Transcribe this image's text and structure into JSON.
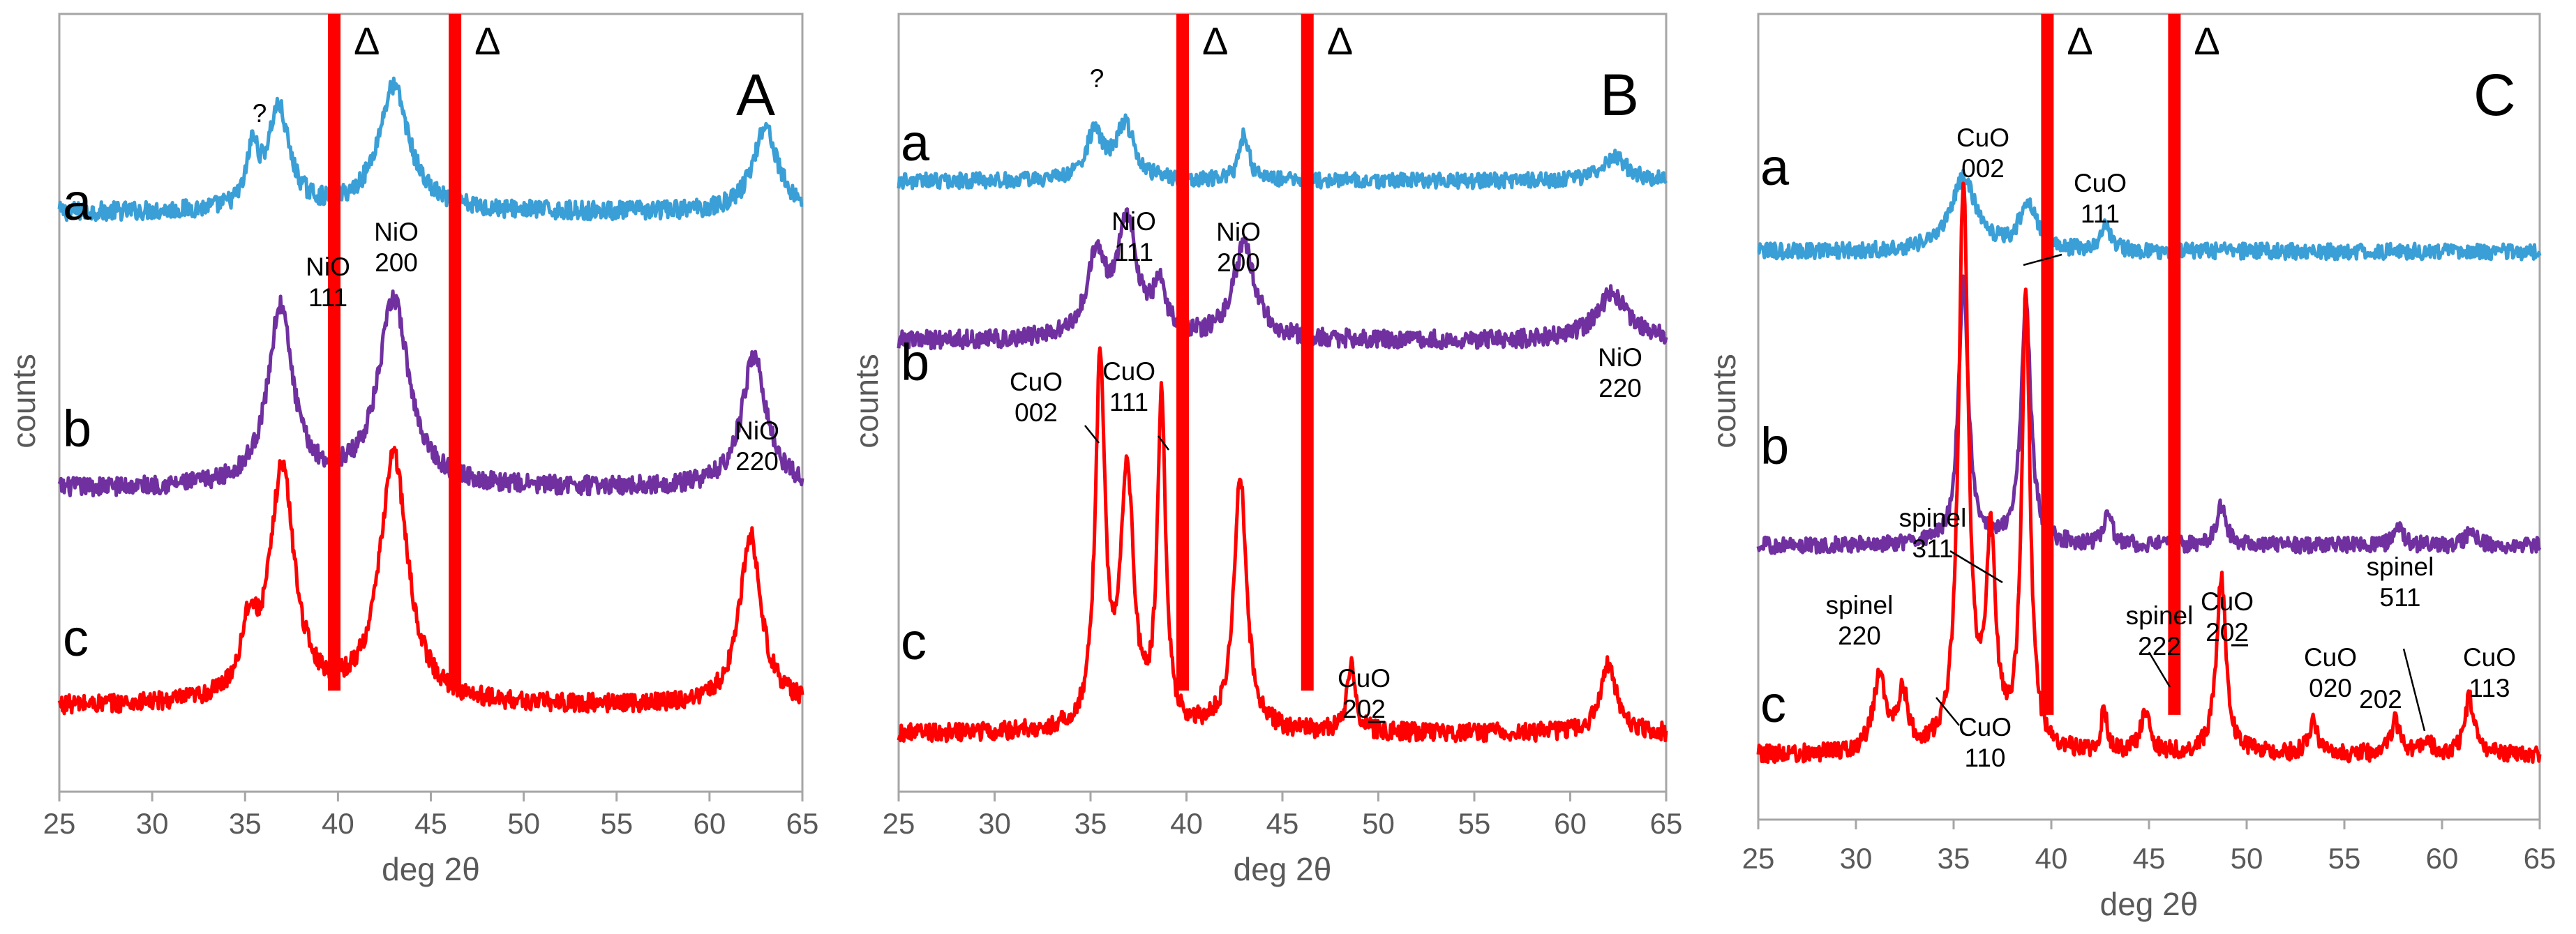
{
  "colors": {
    "a": "#3a9fd6",
    "b": "#7030a0",
    "c": "#ff0000",
    "substrate": "#ff0000"
  },
  "chart_data": [
    {
      "type": "line",
      "panel": "A",
      "xlabel": "deg 2θ",
      "ylabel": "counts",
      "xlim": [
        25,
        65
      ],
      "xticks": [
        "25",
        "30",
        "35",
        "40",
        "45",
        "50",
        "55",
        "60",
        "65"
      ],
      "grid": false,
      "substrate_peaks": [
        {
          "x": 39.8,
          "label": "Δ"
        },
        {
          "x": 46.3,
          "label": "Δ"
        }
      ],
      "series": [
        {
          "name": "a",
          "color_key": "a",
          "base": 0.745,
          "noise": 0.012,
          "peaks": [
            [
              35.4,
              0.07,
              0.35
            ],
            [
              36.8,
              0.13,
              0.7
            ],
            [
              43.0,
              0.16,
              1.0
            ],
            [
              63.0,
              0.11,
              0.8
            ]
          ]
        },
        {
          "name": "b",
          "color_key": "b",
          "base": 0.39,
          "noise": 0.012,
          "peaks": [
            [
              36.9,
              0.23,
              0.8
            ],
            [
              43.0,
              0.24,
              1.0
            ],
            [
              62.4,
              0.17,
              0.8
            ]
          ]
        },
        {
          "name": "c",
          "color_key": "c",
          "base": 0.11,
          "noise": 0.012,
          "peaks": [
            [
              35.2,
              0.08,
              0.5
            ],
            [
              37.0,
              0.3,
              0.8
            ],
            [
              43.0,
              0.32,
              0.9
            ],
            [
              62.2,
              0.22,
              0.7
            ]
          ]
        }
      ],
      "annotations": [
        {
          "text": "?",
          "x": 35.5
        },
        {
          "text": "NiO 111",
          "x": 36.9
        },
        {
          "text": "NiO 200",
          "x": 43.2
        },
        {
          "text": "NiO 220",
          "x": 62.6
        }
      ]
    },
    {
      "type": "line",
      "panel": "B",
      "xlabel": "deg 2θ",
      "ylabel": "counts",
      "xlim": [
        25,
        65
      ],
      "xticks": [
        "25",
        "30",
        "35",
        "40",
        "45",
        "50",
        "55",
        "60",
        "65"
      ],
      "grid": false,
      "substrate_peaks": [
        {
          "x": 39.8,
          "label": "Δ"
        },
        {
          "x": 46.3,
          "label": "Δ"
        }
      ],
      "series": [
        {
          "name": "a",
          "color_key": "a",
          "base": 0.785,
          "noise": 0.01,
          "peaks": [
            [
              35.2,
              0.06,
              0.5
            ],
            [
              36.8,
              0.07,
              0.6
            ],
            [
              43.0,
              0.06,
              0.3
            ],
            [
              62.3,
              0.03,
              0.8
            ]
          ]
        },
        {
          "name": "b",
          "color_key": "b",
          "base": 0.58,
          "noise": 0.012,
          "peaks": [
            [
              35.3,
              0.1,
              0.6
            ],
            [
              36.9,
              0.15,
              0.6
            ],
            [
              38.6,
              0.06,
              0.4
            ],
            [
              43.0,
              0.12,
              0.7
            ],
            [
              62.2,
              0.06,
              1.0
            ]
          ]
        },
        {
          "name": "c",
          "color_key": "c",
          "base": 0.075,
          "noise": 0.012,
          "peaks": [
            [
              35.5,
              0.47,
              0.3
            ],
            [
              36.9,
              0.33,
              0.4
            ],
            [
              38.7,
              0.43,
              0.25
            ],
            [
              42.8,
              0.33,
              0.4
            ],
            [
              48.6,
              0.09,
              0.25
            ],
            [
              62.0,
              0.09,
              0.5
            ]
          ]
        }
      ],
      "annotations": [
        {
          "text": "?",
          "x": 35.2
        },
        {
          "text": "NiO 111",
          "x": 36.9
        },
        {
          "text": "NiO 200",
          "x": 43.0
        },
        {
          "text": "NiO 220",
          "x": 62.2
        },
        {
          "text": "CuO 002",
          "x": 35.5
        },
        {
          "text": "CuO 111",
          "x": 38.7
        },
        {
          "text": "CuO 202̲",
          "x": 48.6
        }
      ]
    },
    {
      "type": "line",
      "panel": "C",
      "xlabel": "deg 2θ",
      "ylabel": "counts",
      "xlim": [
        25,
        65
      ],
      "xticks": [
        "25",
        "30",
        "35",
        "40",
        "45",
        "50",
        "55",
        "60",
        "65"
      ],
      "grid": false,
      "substrate_peaks": [
        {
          "x": 39.8,
          "label": "Δ"
        },
        {
          "x": 46.3,
          "label": "Δ"
        }
      ],
      "series": [
        {
          "name": "a",
          "color_key": "a",
          "base": 0.705,
          "noise": 0.01,
          "peaks": [
            [
              35.5,
              0.09,
              0.8
            ],
            [
              38.8,
              0.06,
              0.5
            ],
            [
              42.8,
              0.03,
              0.3
            ]
          ]
        },
        {
          "name": "b",
          "color_key": "b",
          "base": 0.34,
          "noise": 0.01,
          "peaks": [
            [
              35.5,
              0.33,
              0.3
            ],
            [
              38.7,
              0.3,
              0.3
            ],
            [
              42.9,
              0.04,
              0.25
            ],
            [
              48.7,
              0.05,
              0.3
            ],
            [
              57.8,
              0.02,
              0.3
            ],
            [
              61.5,
              0.02,
              0.3
            ]
          ]
        },
        {
          "name": "c",
          "color_key": "c",
          "base": 0.08,
          "noise": 0.011,
          "peaks": [
            [
              31.2,
              0.09,
              0.4
            ],
            [
              32.4,
              0.07,
              0.3
            ],
            [
              35.5,
              0.7,
              0.3
            ],
            [
              36.9,
              0.25,
              0.3
            ],
            [
              38.7,
              0.57,
              0.25
            ],
            [
              42.7,
              0.05,
              0.2
            ],
            [
              44.8,
              0.05,
              0.3
            ],
            [
              48.7,
              0.22,
              0.3
            ],
            [
              53.4,
              0.04,
              0.3
            ],
            [
              57.6,
              0.04,
              0.3
            ],
            [
              59.2,
              0.02,
              0.3
            ],
            [
              61.4,
              0.07,
              0.3
            ]
          ]
        }
      ],
      "annotations": [
        {
          "text": "CuO 002",
          "x": 35.5
        },
        {
          "text": "CuO 111",
          "x": 38.7
        },
        {
          "text": "spinel 311",
          "x": 36.9
        },
        {
          "text": "spinel 220",
          "x": 31.2
        },
        {
          "text": "CuO 110",
          "x": 32.4
        },
        {
          "text": "spinel 222",
          "x": 44.8
        },
        {
          "text": "CuO 202̲",
          "x": 48.7
        },
        {
          "text": "CuO 020",
          "x": 53.4
        },
        {
          "text": "202",
          "x": 57.6
        },
        {
          "text": "spinel 511",
          "x": 59.2
        },
        {
          "text": "CuO 113",
          "x": 61.4
        }
      ]
    }
  ]
}
